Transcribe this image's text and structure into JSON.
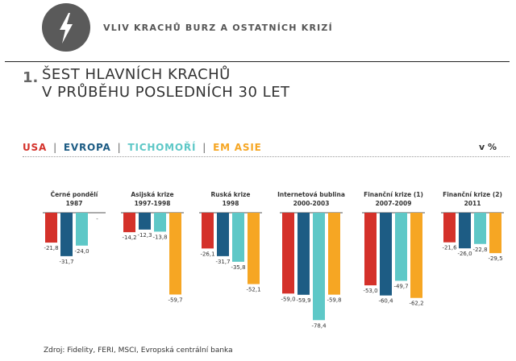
{
  "banner": {
    "title": "VLIV KRACHŮ BURZ A OSTATNÍCH KRIZÍ",
    "icon": "lightning-icon"
  },
  "section": {
    "number": "1.",
    "headline_line1": "ŠEST HLAVNÍCH KRACHŮ",
    "headline_line2": "V PRŮBĚHU POSLEDNÍCH 30 LET"
  },
  "unit": "v %",
  "source": "Zdroj: Fidelity, FERI, MSCI, Evropská centrální banka",
  "colors": {
    "USA": "#d4312a",
    "EVROPA": "#1d5c84",
    "TICHOMOŘÍ": "#5ec8c7",
    "EM ASIE": "#f6a623"
  },
  "chart_data": {
    "type": "bar",
    "ylim": [
      -80,
      0
    ],
    "series_names": [
      "USA",
      "EVROPA",
      "TICHOMOŘÍ",
      "EM ASIE"
    ],
    "groups": [
      {
        "title": "Černé pondělí",
        "years": "1987",
        "values": [
          -21.8,
          -31.7,
          -24.0,
          null
        ],
        "labels": [
          "-21,8",
          "-31,7",
          "-24,0",
          "-"
        ]
      },
      {
        "title": "Asijská krize",
        "years": "1997-1998",
        "values": [
          -14.2,
          -12.3,
          -13.8,
          -59.7
        ],
        "labels": [
          "-14,2",
          "-12,3",
          "-13,8",
          "-59,7"
        ]
      },
      {
        "title": "Ruská krize",
        "years": "1998",
        "values": [
          -26.1,
          -31.7,
          -35.8,
          -52.1
        ],
        "labels": [
          "-26,1",
          "-31,7",
          "-35,8",
          "-52,1"
        ]
      },
      {
        "title": "Internetová bublina",
        "years": "2000-2003",
        "values": [
          -59.0,
          -59.9,
          -78.4,
          -59.8
        ],
        "labels": [
          "-59,0",
          "-59,9",
          "-78,4",
          "-59,8"
        ]
      },
      {
        "title": "Finanční krize (1)",
        "years": "2007-2009",
        "values": [
          -53.0,
          -60.4,
          -49.7,
          -62.2
        ],
        "labels": [
          "-53,0",
          "-60,4",
          "-49,7",
          "-62,2"
        ]
      },
      {
        "title": "Finanční krize (2)",
        "years": "2011",
        "values": [
          -21.6,
          -26.0,
          -22.8,
          -29.5
        ],
        "labels": [
          "-21,6",
          "-26,0",
          "-22,8",
          "-29,5"
        ]
      }
    ]
  }
}
